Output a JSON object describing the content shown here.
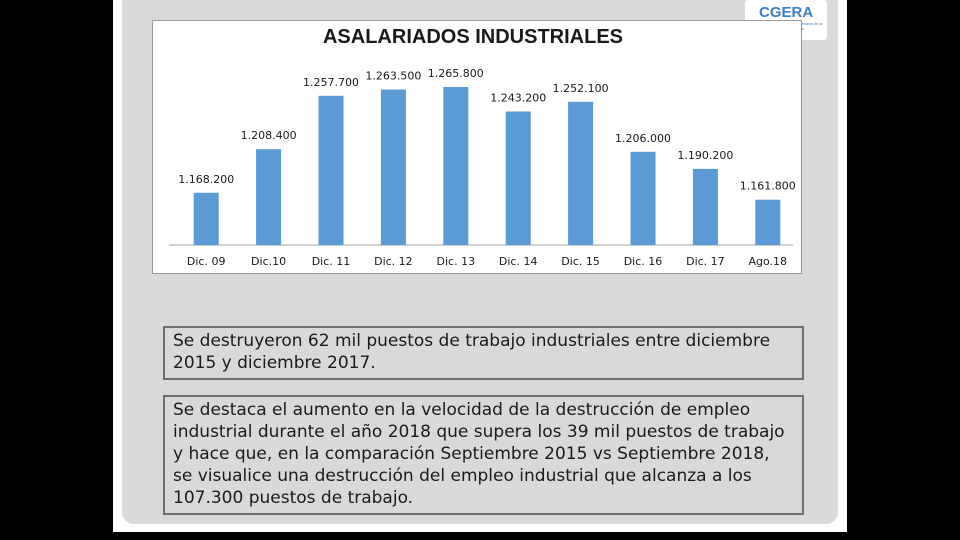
{
  "logo": {
    "mark": "CGERA",
    "subtitle": "Confederación General Empresaria de la República Argentina"
  },
  "chart_data": {
    "type": "bar",
    "title": "ASALARIADOS INDUSTRIALES",
    "categories": [
      "Dic. 09",
      "Dic.10",
      "Dic. 11",
      "Dic. 12",
      "Dic. 13",
      "Dic. 14",
      "Dic. 15",
      "Dic. 16",
      "Dic. 17",
      "Ago.18"
    ],
    "values": [
      1168200,
      1208400,
      1257700,
      1263500,
      1265800,
      1243200,
      1252100,
      1206000,
      1190200,
      1161800
    ],
    "value_labels": [
      "1.168.200",
      "1.208.400",
      "1.257.700",
      "1.263.500",
      "1.265.800",
      "1.243.200",
      "1.252.100",
      "1.206.000",
      "1.190.200",
      "1.161.800"
    ],
    "xlabel": "",
    "ylabel": "",
    "ylim": [
      1120000,
      1275000
    ],
    "grid": false,
    "legend": "none",
    "bar_color": "#5b9bd5"
  },
  "notes": [
    "Se destruyeron 62 mil puestos de trabajo industriales entre diciembre 2015 y diciembre 2017.",
    "Se destaca el aumento en la velocidad de la destrucción de empleo industrial durante el año 2018 que supera los 39 mil puestos de trabajo y hace que, en la comparación Septiembre 2015 vs Septiembre 2018, se visualice una destrucción del empleo industrial que alcanza a los 107.300 puestos de trabajo."
  ]
}
